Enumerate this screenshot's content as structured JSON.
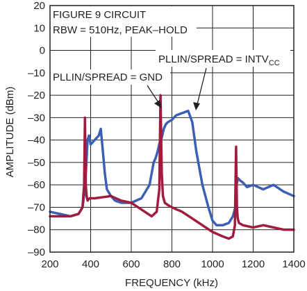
{
  "chart_data": {
    "type": "line",
    "annotations": {
      "circuit": "FIGURE 9 CIRCUIT",
      "rbw": "RBW = 510Hz, PEAK–HOLD",
      "label_gnd": "PLLIN/SPREAD = GND",
      "label_intv": "PLLIN/SPREAD = INTV",
      "label_intv_sub": "CC"
    },
    "xlabel": "FREQUENCY (kHz)",
    "ylabel": "AMPLITUDE (dBm)",
    "xlim": [
      200,
      1400
    ],
    "ylim": [
      -90,
      20
    ],
    "xticks": [
      "200",
      "400",
      "600",
      "800",
      "1000",
      "1200",
      "1400"
    ],
    "yticks": [
      "20",
      "10",
      "0",
      "–10",
      "–20",
      "–30",
      "–40",
      "–50",
      "–60",
      "–70",
      "–80",
      "–90"
    ],
    "grid": true,
    "series": [
      {
        "color": "#3b5fb4",
        "x": [
          200,
          250,
          300,
          340,
          360,
          372,
          378,
          385,
          392,
          400,
          420,
          440,
          450,
          460,
          470,
          480,
          500,
          520,
          550,
          600,
          650,
          690,
          700,
          710,
          720,
          730,
          735,
          740,
          745,
          750,
          760,
          770,
          780,
          800,
          820,
          850,
          880,
          900,
          920,
          950,
          980,
          1000,
          1020,
          1050,
          1080,
          1100,
          1112,
          1118,
          1125,
          1135,
          1150,
          1170,
          1200,
          1250,
          1300,
          1350,
          1400
        ],
        "y": [
          -72,
          -73,
          -74,
          -73,
          -70,
          -62,
          -52,
          -40,
          -38,
          -42,
          -40,
          -38,
          -35,
          -45,
          -55,
          -62,
          -65,
          -67,
          -68,
          -68,
          -66,
          -60,
          -55,
          -50,
          -48,
          -45,
          -43,
          -41,
          -40,
          -39,
          -35,
          -33,
          -32,
          -31,
          -29,
          -28,
          -27,
          -32,
          -45,
          -60,
          -70,
          -76,
          -78,
          -78,
          -77,
          -74,
          -70,
          -60,
          -57,
          -58,
          -59,
          -61,
          -60,
          -62,
          -60,
          -63,
          -65
        ]
      },
      {
        "color": "#a01c3e",
        "x": [
          200,
          250,
          300,
          340,
          360,
          368,
          372,
          376,
          380,
          385,
          395,
          420,
          500,
          550,
          600,
          650,
          700,
          725,
          738,
          744,
          750,
          756,
          765,
          780,
          800,
          850,
          900,
          950,
          1000,
          1050,
          1080,
          1100,
          1110,
          1116,
          1120,
          1124,
          1130,
          1150,
          1200,
          1250,
          1300,
          1350,
          1400
        ],
        "y": [
          -74,
          -74,
          -74,
          -73,
          -70,
          -60,
          -30,
          -60,
          -65,
          -67,
          -66,
          -66,
          -65,
          -67,
          -68,
          -71,
          -74,
          -72,
          -62,
          -20,
          -55,
          -65,
          -68,
          -69,
          -70,
          -72,
          -75,
          -78,
          -81,
          -83,
          -84,
          -83,
          -78,
          -43,
          -70,
          -75,
          -77,
          -78,
          -79,
          -78,
          -79,
          -80,
          -80
        ]
      }
    ]
  }
}
